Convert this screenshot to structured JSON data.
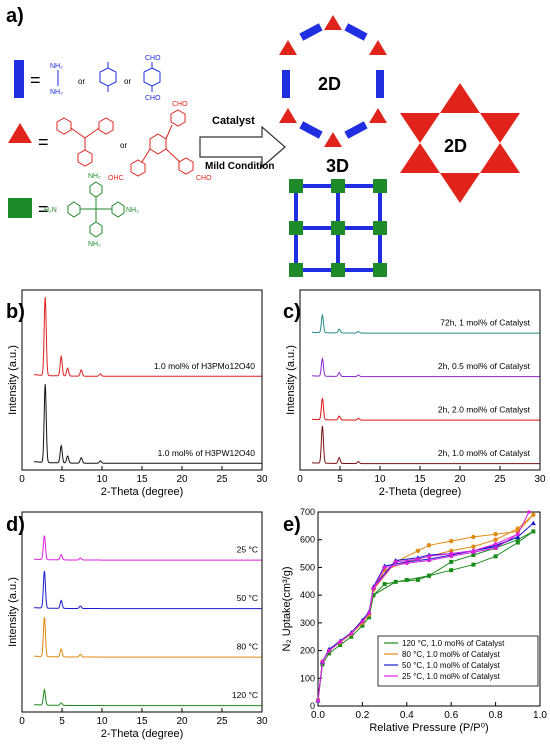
{
  "panel_labels": {
    "a": "a)",
    "b": "b)",
    "c": "c)",
    "d": "d)",
    "e": "e)"
  },
  "scheme": {
    "equals": "=",
    "or": "or",
    "catalyst_label": "Catalyst",
    "condition_label": "Mild Condition",
    "product_2d_a": "2D",
    "product_2d_b": "2D",
    "product_3d": "3D",
    "linker_colors": {
      "blue": "#1f2ee0",
      "red": "#e0241c",
      "green": "#1f8a2a"
    },
    "chem_labels": {
      "nh2": "NH₂",
      "h2n": "H₂N",
      "cho": "CHO",
      "ohc": "OHC"
    }
  },
  "chart_data": [
    {
      "panel": "b",
      "type": "line",
      "xlabel": "2-Theta (degree)",
      "ylabel": "Intensity (a.u.)",
      "xlim": [
        0,
        30
      ],
      "xticks": [
        0,
        5,
        10,
        15,
        20,
        25,
        30
      ],
      "series": [
        {
          "name": "1.0 mol% of H3PMo12O40",
          "color": "#e02020",
          "peaks": [
            [
              2.9,
              1.0
            ],
            [
              4.9,
              0.25
            ],
            [
              5.7,
              0.1
            ],
            [
              7.4,
              0.08
            ],
            [
              9.8,
              0.03
            ]
          ]
        },
        {
          "name": "1.0 mol% of H3PW12O40",
          "color": "#111111",
          "peaks": [
            [
              2.9,
              1.0
            ],
            [
              4.9,
              0.22
            ],
            [
              5.7,
              0.09
            ],
            [
              7.4,
              0.07
            ],
            [
              9.8,
              0.03
            ]
          ]
        }
      ]
    },
    {
      "panel": "c",
      "type": "line",
      "xlabel": "2-Theta (degree)",
      "ylabel": "Intensity (a.u.)",
      "xlim": [
        0,
        30
      ],
      "xticks": [
        0,
        5,
        10,
        15,
        20,
        25,
        30
      ],
      "series": [
        {
          "name": "72h, 1 mol% of Catalyst",
          "color": "#2a8a88",
          "peaks": [
            [
              2.8,
              0.45
            ],
            [
              4.9,
              0.1
            ],
            [
              7.3,
              0.04
            ]
          ]
        },
        {
          "name": "2h, 0.5 mol% of Catalyst",
          "color": "#8a2ad0",
          "peaks": [
            [
              2.8,
              0.45
            ],
            [
              4.9,
              0.1
            ],
            [
              7.3,
              0.04
            ]
          ]
        },
        {
          "name": "2h, 2.0 mol% of Catalyst",
          "color": "#e01010",
          "peaks": [
            [
              2.8,
              0.55
            ],
            [
              4.9,
              0.1
            ],
            [
              7.3,
              0.04
            ]
          ]
        },
        {
          "name": "2h, 1.0 mol% of Catalyst",
          "color": "#7a1010",
          "peaks": [
            [
              2.8,
              0.95
            ],
            [
              4.9,
              0.15
            ],
            [
              7.3,
              0.05
            ]
          ]
        }
      ]
    },
    {
      "panel": "d",
      "type": "line",
      "xlabel": "2-Theta (degree)",
      "ylabel": "Intensity (a.u.)",
      "xlim": [
        0,
        30
      ],
      "xticks": [
        0,
        5,
        10,
        15,
        20,
        25,
        30
      ],
      "series": [
        {
          "name": "25 °C",
          "color": "#e020e0",
          "peaks": [
            [
              2.8,
              0.55
            ],
            [
              4.9,
              0.12
            ],
            [
              7.3,
              0.05
            ]
          ]
        },
        {
          "name": "50 °C",
          "color": "#1a1ad0",
          "peaks": [
            [
              2.8,
              0.85
            ],
            [
              4.9,
              0.18
            ],
            [
              7.3,
              0.06
            ]
          ]
        },
        {
          "name": "80 °C",
          "color": "#e08a10",
          "peaks": [
            [
              2.8,
              0.9
            ],
            [
              4.9,
              0.18
            ],
            [
              7.3,
              0.06
            ]
          ]
        },
        {
          "name": "120 °C",
          "color": "#1a8a1a",
          "peaks": [
            [
              2.8,
              0.35
            ],
            [
              4.9,
              0.06
            ]
          ]
        }
      ]
    },
    {
      "panel": "e",
      "type": "line",
      "xlabel": "Relative Pressure (P/P⁰)",
      "ylabel": "N₂ Uptake(cm³/g)",
      "xlim": [
        0,
        1.0
      ],
      "ylim": [
        0,
        700
      ],
      "xticks": [
        0.0,
        0.2,
        0.4,
        0.6,
        0.8,
        1.0
      ],
      "yticks": [
        0,
        100,
        200,
        300,
        400,
        500,
        600,
        700
      ],
      "legend_position": "bottom-right",
      "series": [
        {
          "name": "120 °C,  1.0 mol% of Catalyst",
          "color": "#1a8a1a",
          "marker": "square",
          "x": [
            0.0,
            0.02,
            0.05,
            0.1,
            0.15,
            0.2,
            0.23,
            0.25,
            0.3,
            0.4,
            0.5,
            0.6,
            0.7,
            0.8,
            0.9,
            0.97,
            0.9,
            0.8,
            0.7,
            0.6,
            0.5,
            0.45,
            0.35,
            0.25
          ],
          "y": [
            20,
            150,
            190,
            220,
            250,
            290,
            320,
            400,
            440,
            455,
            470,
            490,
            510,
            540,
            590,
            630,
            600,
            570,
            545,
            520,
            470,
            455,
            448,
            400
          ]
        },
        {
          "name": "80 °C,  1.0 mol% of Catalyst",
          "color": "#e08a10",
          "marker": "circle",
          "x": [
            0.0,
            0.02,
            0.05,
            0.1,
            0.15,
            0.2,
            0.23,
            0.25,
            0.3,
            0.4,
            0.5,
            0.6,
            0.7,
            0.8,
            0.9,
            0.97,
            0.9,
            0.8,
            0.7,
            0.6,
            0.5,
            0.45,
            0.35,
            0.25
          ],
          "y": [
            20,
            160,
            200,
            230,
            260,
            300,
            330,
            420,
            490,
            520,
            540,
            560,
            575,
            600,
            640,
            690,
            630,
            620,
            610,
            595,
            580,
            560,
            520,
            420
          ]
        },
        {
          "name": "50 °C,  1.0 mol% of Catalyst",
          "color": "#1a1ad0",
          "marker": "triangle",
          "x": [
            0.0,
            0.02,
            0.05,
            0.1,
            0.15,
            0.2,
            0.23,
            0.25,
            0.3,
            0.4,
            0.5,
            0.6,
            0.7,
            0.8,
            0.9,
            0.97,
            0.9,
            0.8,
            0.7,
            0.6,
            0.5,
            0.45,
            0.35,
            0.25
          ],
          "y": [
            20,
            160,
            205,
            235,
            265,
            310,
            340,
            430,
            505,
            520,
            530,
            545,
            560,
            575,
            610,
            660,
            610,
            580,
            560,
            550,
            545,
            535,
            525,
            430
          ]
        },
        {
          "name": "25 °C,  1.0 mol% of Catalyst",
          "color": "#e020e0",
          "marker": "star",
          "x": [
            0.0,
            0.02,
            0.05,
            0.1,
            0.15,
            0.2,
            0.23,
            0.25,
            0.3,
            0.4,
            0.5,
            0.6,
            0.7,
            0.8,
            0.9,
            0.95,
            0.9,
            0.8,
            0.7,
            0.6,
            0.5,
            0.45,
            0.35,
            0.25
          ],
          "y": [
            20,
            160,
            200,
            232,
            262,
            305,
            335,
            425,
            500,
            515,
            525,
            540,
            555,
            570,
            620,
            700,
            620,
            585,
            560,
            550,
            540,
            530,
            520,
            425
          ]
        }
      ]
    }
  ]
}
